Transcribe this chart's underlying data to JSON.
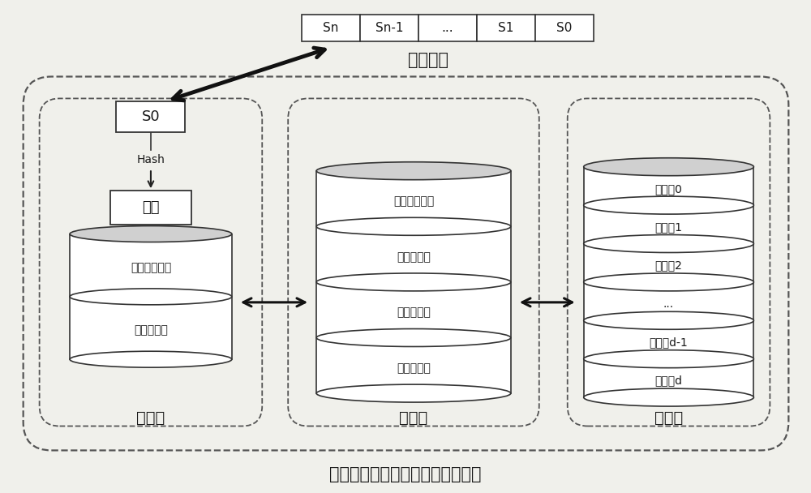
{
  "bg_color": "#f0f0eb",
  "title": "基于光盘存储的重复数据删除系统",
  "file_blocks": [
    "Sn",
    "Sn-1",
    "...",
    "S1",
    "S0"
  ],
  "file_blocks_label": "文件分块",
  "cache_label": "缓存区",
  "buffer_label": "缓冲区",
  "disc_label": "光盘柜",
  "s0_box": "S0",
  "hash_label": "Hash",
  "fingerprint_box": "指纹",
  "cache_cylinder_labels": [
    "数据块缓存区",
    "指纹缓存区"
  ],
  "buffer_cylinder_labels": [
    "数据块缓冲区",
    "指纹存储区",
    "目录存储区",
    "光盘缓存区"
  ],
  "disc_groups": [
    "光盘组0",
    "光盘组1",
    "光盘组2",
    "...",
    "光盘组d-1",
    "光盘组d"
  ],
  "text_color": "#1a1a1a",
  "cylinder_edge_color": "#333333",
  "dashed_color": "#555555"
}
